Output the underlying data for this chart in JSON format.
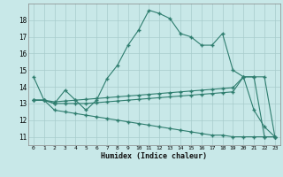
{
  "xlabel": "Humidex (Indice chaleur)",
  "x": [
    0,
    1,
    2,
    3,
    4,
    5,
    6,
    7,
    8,
    9,
    10,
    11,
    12,
    13,
    14,
    15,
    16,
    17,
    18,
    19,
    20,
    21,
    22,
    23
  ],
  "line1": [
    14.6,
    13.2,
    13.0,
    13.8,
    13.2,
    12.6,
    13.2,
    14.5,
    15.3,
    16.5,
    17.4,
    18.6,
    18.4,
    18.1,
    17.2,
    17.0,
    16.5,
    16.5,
    17.2,
    15.0,
    14.6,
    12.6,
    11.6,
    11.0
  ],
  "line2": [
    13.2,
    13.2,
    13.1,
    13.15,
    13.2,
    13.25,
    13.3,
    13.35,
    13.4,
    13.45,
    13.5,
    13.55,
    13.6,
    13.65,
    13.7,
    13.75,
    13.8,
    13.85,
    13.9,
    13.95,
    14.6,
    14.6,
    14.6,
    11.0
  ],
  "line3": [
    13.2,
    13.2,
    13.0,
    13.0,
    13.0,
    13.0,
    13.05,
    13.1,
    13.15,
    13.2,
    13.25,
    13.3,
    13.35,
    13.4,
    13.45,
    13.5,
    13.55,
    13.6,
    13.65,
    13.7,
    14.6,
    14.6,
    11.0,
    11.0
  ],
  "line4": [
    13.2,
    13.2,
    12.6,
    12.5,
    12.4,
    12.3,
    12.2,
    12.1,
    12.0,
    11.9,
    11.8,
    11.7,
    11.6,
    11.5,
    11.4,
    11.3,
    11.2,
    11.1,
    11.1,
    11.0,
    11.0,
    11.0,
    11.0,
    11.0
  ],
  "color": "#2e7d6e",
  "bg_color": "#c8e8e8",
  "ylim": [
    10.5,
    19.0
  ],
  "xlim": [
    -0.5,
    23.5
  ],
  "yticks": [
    11,
    12,
    13,
    14,
    15,
    16,
    17,
    18
  ],
  "xticks": [
    0,
    1,
    2,
    3,
    4,
    5,
    6,
    7,
    8,
    9,
    10,
    11,
    12,
    13,
    14,
    15,
    16,
    17,
    18,
    19,
    20,
    21,
    22,
    23
  ]
}
